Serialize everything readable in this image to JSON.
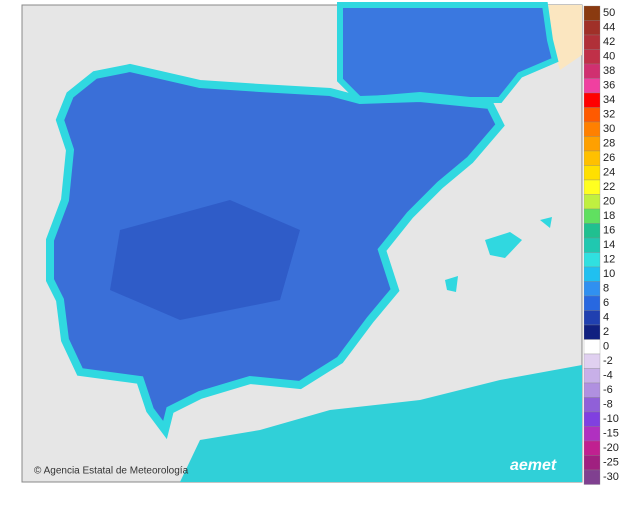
{
  "legend": {
    "items": [
      {
        "label": "50",
        "color": "#8a3a10"
      },
      {
        "label": "44",
        "color": "#a03028"
      },
      {
        "label": "42",
        "color": "#b03038"
      },
      {
        "label": "40",
        "color": "#c03048"
      },
      {
        "label": "38",
        "color": "#d03070"
      },
      {
        "label": "36",
        "color": "#f040a0"
      },
      {
        "label": "34",
        "color": "#ff0000"
      },
      {
        "label": "32",
        "color": "#ff5a00"
      },
      {
        "label": "30",
        "color": "#ff8000"
      },
      {
        "label": "28",
        "color": "#ffa000"
      },
      {
        "label": "26",
        "color": "#ffc000"
      },
      {
        "label": "24",
        "color": "#ffe000"
      },
      {
        "label": "22",
        "color": "#ffff20"
      },
      {
        "label": "20",
        "color": "#c0f040"
      },
      {
        "label": "18",
        "color": "#60e060"
      },
      {
        "label": "16",
        "color": "#20c090"
      },
      {
        "label": "14",
        "color": "#20c8b0"
      },
      {
        "label": "12",
        "color": "#30e0e0"
      },
      {
        "label": "10",
        "color": "#20c0f0"
      },
      {
        "label": "8",
        "color": "#3090f0"
      },
      {
        "label": "6",
        "color": "#2868e0"
      },
      {
        "label": "4",
        "color": "#2040b0"
      },
      {
        "label": "2",
        "color": "#102080"
      },
      {
        "label": "0",
        "color": "#ffffff"
      },
      {
        "label": "-2",
        "color": "#e0d0f0"
      },
      {
        "label": "-4",
        "color": "#c8b0e8"
      },
      {
        "label": "-6",
        "color": "#b090e0"
      },
      {
        "label": "-8",
        "color": "#9060d8"
      },
      {
        "label": "-10",
        "color": "#8040e0"
      },
      {
        "label": "-15",
        "color": "#b030c0"
      },
      {
        "label": "-20",
        "color": "#c02090"
      },
      {
        "label": "-25",
        "color": "#a02080"
      },
      {
        "label": "-30",
        "color": "#804090"
      }
    ]
  },
  "footer": {
    "credit": "© Agencia Estatal de Meteorología",
    "logo": "aemet"
  }
}
